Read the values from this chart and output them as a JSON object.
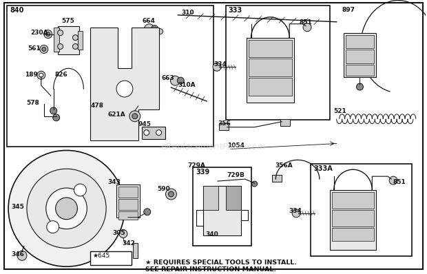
{
  "bg_color": "#ffffff",
  "line_color": "#111111",
  "gray_light": "#e8e8e8",
  "gray_mid": "#cccccc",
  "gray_dark": "#888888",
  "watermark_text": "eReplacementParts.com",
  "watermark_color": "#cccccc",
  "footer_line1": "★ REQUIRES SPECIAL TOOLS TO INSTALL.",
  "footer_line2": "SEE REPAIR INSTRUCTION MANUAL.",
  "figsize": [
    6.2,
    3.98
  ],
  "dpi": 100
}
